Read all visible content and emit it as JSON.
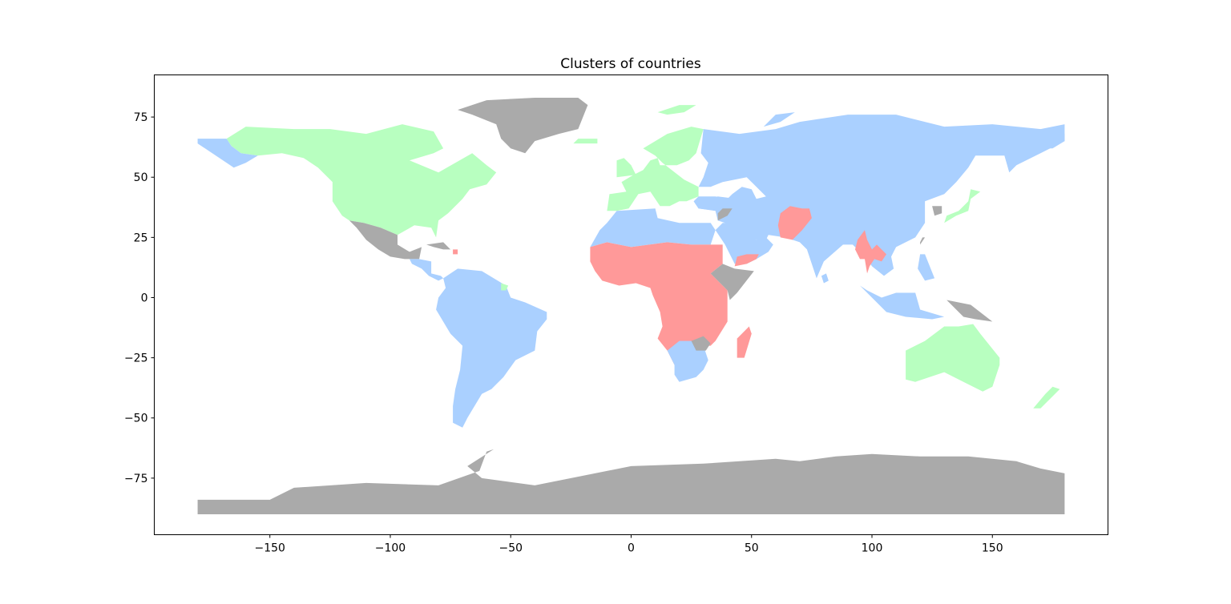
{
  "chart_data": {
    "type": "map",
    "title": "Clusters of countries",
    "projection": "plate-carree",
    "xlabel": "",
    "ylabel": "",
    "xlim": [
      -198,
      198
    ],
    "ylim": [
      -98.5,
      92.5
    ],
    "xticks": [
      -150,
      -100,
      -50,
      0,
      50,
      100,
      150
    ],
    "xtick_labels": [
      "−150",
      "−100",
      "−50",
      "0",
      "50",
      "100",
      "150"
    ],
    "yticks": [
      75,
      50,
      25,
      0,
      -25,
      -50,
      -75
    ],
    "ytick_labels": [
      "75",
      "50",
      "25",
      "0",
      "−25",
      "−50",
      "−75"
    ],
    "grid": false,
    "legend": false,
    "cluster_colors": {
      "green": "#b8ffc0",
      "blue": "#aad0ff",
      "red": "#ff9999",
      "gray": "#aaaaaa"
    }
  }
}
